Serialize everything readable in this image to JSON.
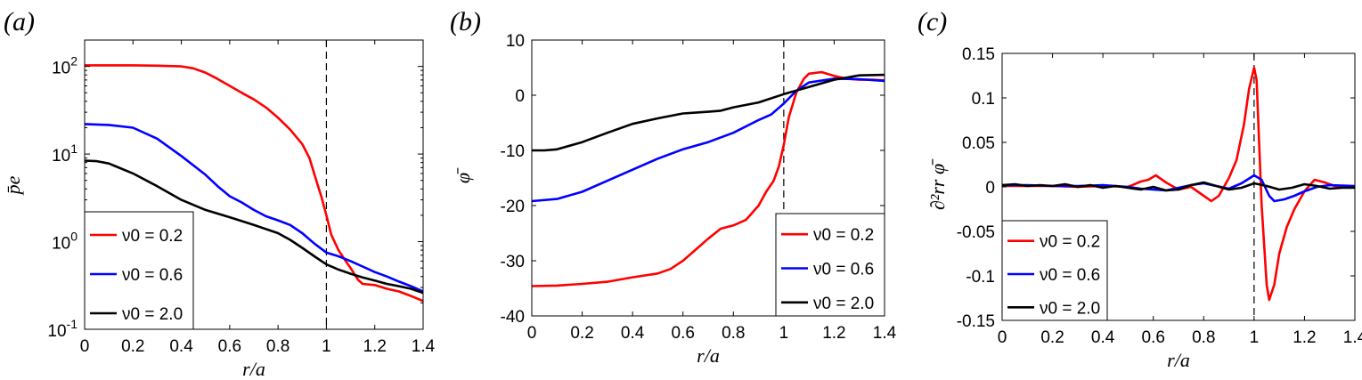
{
  "chart_data": [
    {
      "type": "line",
      "panel": "(a)",
      "xlabel": "r/a",
      "ylabel": "p̄e",
      "xlim": [
        0,
        1.4
      ],
      "ylim": [
        0.1,
        200
      ],
      "yscale": "log",
      "xticks": [
        "0",
        "0.2",
        "0.4",
        "0.6",
        "0.8",
        "1",
        "1.2",
        "1.4"
      ],
      "yticks": [
        {
          "v": 0.1,
          "base": "10",
          "exp": "-1"
        },
        {
          "v": 1,
          "base": "10",
          "exp": "0"
        },
        {
          "v": 10,
          "base": "10",
          "exp": "1"
        },
        {
          "v": 100,
          "base": "10",
          "exp": "2"
        }
      ],
      "vline": 1,
      "legend_position": "bottom-left",
      "series": [
        {
          "name": "ν0 = 0.2",
          "color": "#ff0000",
          "x": [
            0,
            0.1,
            0.2,
            0.3,
            0.4,
            0.45,
            0.5,
            0.55,
            0.6,
            0.65,
            0.7,
            0.75,
            0.8,
            0.85,
            0.9,
            0.93,
            0.96,
            0.98,
            1.0,
            1.02,
            1.05,
            1.08,
            1.1,
            1.13,
            1.15,
            1.2,
            1.25,
            1.3,
            1.35,
            1.4
          ],
          "y": [
            103,
            103,
            103,
            102,
            100,
            95,
            85,
            72,
            60,
            50,
            42,
            34,
            26,
            19,
            13,
            9,
            4.8,
            3.2,
            2.0,
            1.2,
            0.8,
            0.6,
            0.5,
            0.37,
            0.33,
            0.32,
            0.29,
            0.27,
            0.24,
            0.21
          ]
        },
        {
          "name": "ν0 = 0.6",
          "color": "#0000ff",
          "x": [
            0,
            0.1,
            0.2,
            0.3,
            0.4,
            0.5,
            0.55,
            0.6,
            0.65,
            0.7,
            0.75,
            0.8,
            0.85,
            0.9,
            0.95,
            1.0,
            1.05,
            1.1,
            1.15,
            1.2,
            1.25,
            1.3,
            1.35,
            1.4
          ],
          "y": [
            22,
            21.5,
            20,
            15,
            9.5,
            5.8,
            4.3,
            3.3,
            2.8,
            2.3,
            1.95,
            1.75,
            1.55,
            1.25,
            0.95,
            0.75,
            0.68,
            0.6,
            0.52,
            0.45,
            0.4,
            0.35,
            0.31,
            0.27
          ]
        },
        {
          "name": "ν0 = 2.0",
          "color": "#000000",
          "x": [
            0,
            0.05,
            0.1,
            0.2,
            0.3,
            0.4,
            0.5,
            0.6,
            0.7,
            0.8,
            0.85,
            0.9,
            0.95,
            1.0,
            1.05,
            1.1,
            1.15,
            1.2,
            1.25,
            1.3,
            1.35,
            1.4
          ],
          "y": [
            8.4,
            8.3,
            7.8,
            6.0,
            4.3,
            3.0,
            2.3,
            1.9,
            1.55,
            1.25,
            1.05,
            0.85,
            0.68,
            0.55,
            0.48,
            0.43,
            0.39,
            0.36,
            0.33,
            0.31,
            0.29,
            0.26
          ]
        }
      ]
    },
    {
      "type": "line",
      "panel": "(b)",
      "xlabel": "r/a",
      "ylabel": "φ̄",
      "xlim": [
        0,
        1.4
      ],
      "ylim": [
        -40,
        10
      ],
      "xticks": [
        "0",
        "0.2",
        "0.4",
        "0.6",
        "0.8",
        "1",
        "1.2",
        "1.4"
      ],
      "yticks": [
        "-40",
        "-30",
        "-20",
        "-10",
        "0",
        "10"
      ],
      "vline": 1,
      "legend_position": "bottom-right",
      "series": [
        {
          "name": "ν0 = 0.2",
          "color": "#ff0000",
          "x": [
            0,
            0.1,
            0.2,
            0.3,
            0.4,
            0.5,
            0.55,
            0.6,
            0.65,
            0.7,
            0.75,
            0.8,
            0.85,
            0.9,
            0.93,
            0.96,
            0.98,
            1.0,
            1.02,
            1.05,
            1.08,
            1.1,
            1.15,
            1.2,
            1.25,
            1.3,
            1.35,
            1.4
          ],
          "y": [
            -34.6,
            -34.5,
            -34.2,
            -33.8,
            -33.0,
            -32.3,
            -31.5,
            -30.0,
            -28.0,
            -26.0,
            -24.2,
            -23.6,
            -22.6,
            -20.0,
            -17.5,
            -15.5,
            -13.0,
            -9.0,
            -4.0,
            0.5,
            3.0,
            3.9,
            4.2,
            3.5,
            3.0,
            2.8,
            2.8,
            2.7
          ]
        },
        {
          "name": "ν0 = 0.6",
          "color": "#0000ff",
          "x": [
            0,
            0.1,
            0.2,
            0.3,
            0.4,
            0.5,
            0.6,
            0.7,
            0.8,
            0.9,
            0.95,
            1.0,
            1.05,
            1.1,
            1.2,
            1.3,
            1.4
          ],
          "y": [
            -19.2,
            -18.8,
            -17.5,
            -15.5,
            -13.5,
            -11.5,
            -9.8,
            -8.5,
            -6.8,
            -4.5,
            -3.5,
            -1.5,
            0.8,
            2.3,
            3.0,
            2.9,
            2.6
          ]
        },
        {
          "name": "ν0 = 2.0",
          "color": "#000000",
          "x": [
            0,
            0.05,
            0.1,
            0.2,
            0.3,
            0.4,
            0.5,
            0.6,
            0.7,
            0.75,
            0.8,
            0.9,
            1.0,
            1.1,
            1.2,
            1.3,
            1.4
          ],
          "y": [
            -10.0,
            -10.0,
            -9.8,
            -8.5,
            -6.8,
            -5.2,
            -4.2,
            -3.3,
            -3.0,
            -2.8,
            -2.2,
            -1.3,
            0.2,
            1.5,
            2.8,
            3.6,
            3.7
          ]
        }
      ]
    },
    {
      "type": "line",
      "panel": "(c)",
      "xlabel": "r/a",
      "ylabel": "∂²rr φ̄",
      "xlim": [
        0,
        1.4
      ],
      "ylim": [
        -0.15,
        0.15
      ],
      "xticks": [
        "0",
        "0.2",
        "0.4",
        "0.6",
        "0.8",
        "1",
        "1.2",
        "1.4"
      ],
      "yticks": [
        "-0.15",
        "-0.1",
        "-0.05",
        "0",
        "0.05",
        "0.1",
        "0.15"
      ],
      "vline": 1,
      "legend_position": "bottom-left",
      "series": [
        {
          "name": "ν0 = 0.2",
          "color": "#ff0000",
          "x": [
            0,
            0.1,
            0.2,
            0.3,
            0.4,
            0.5,
            0.55,
            0.58,
            0.61,
            0.65,
            0.7,
            0.75,
            0.8,
            0.83,
            0.86,
            0.9,
            0.93,
            0.96,
            0.98,
            1.0,
            1.01,
            1.02,
            1.03,
            1.05,
            1.06,
            1.08,
            1.1,
            1.13,
            1.16,
            1.2,
            1.24,
            1.28,
            1.32,
            1.4
          ],
          "y": [
            0.001,
            0.001,
            0.001,
            0.0,
            0.001,
            0.0,
            0.006,
            0.008,
            0.013,
            0.005,
            -0.003,
            0.0,
            -0.01,
            -0.016,
            -0.01,
            0.01,
            0.03,
            0.07,
            0.11,
            0.134,
            0.12,
            0.05,
            -0.02,
            -0.11,
            -0.127,
            -0.11,
            -0.075,
            -0.045,
            -0.025,
            -0.005,
            0.008,
            0.005,
            0.001,
            0.0
          ]
        },
        {
          "name": "ν0 = 0.6",
          "color": "#0000ff",
          "x": [
            0,
            0.1,
            0.2,
            0.3,
            0.4,
            0.5,
            0.55,
            0.6,
            0.65,
            0.7,
            0.75,
            0.8,
            0.85,
            0.9,
            0.95,
            1.0,
            1.03,
            1.06,
            1.08,
            1.12,
            1.16,
            1.2,
            1.25,
            1.3,
            1.4
          ],
          "y": [
            0.002,
            0.002,
            0.001,
            0.001,
            0.002,
            0.0,
            -0.002,
            -0.003,
            -0.004,
            -0.001,
            0.002,
            0.004,
            0.001,
            -0.002,
            0.004,
            0.013,
            0.008,
            -0.01,
            -0.016,
            -0.014,
            -0.01,
            -0.005,
            0.0,
            0.002,
            0.001
          ]
        },
        {
          "name": "ν0 = 2.0",
          "color": "#000000",
          "x": [
            0,
            0.05,
            0.1,
            0.15,
            0.2,
            0.25,
            0.3,
            0.35,
            0.4,
            0.45,
            0.5,
            0.55,
            0.6,
            0.65,
            0.7,
            0.75,
            0.8,
            0.85,
            0.9,
            0.95,
            1.0,
            1.05,
            1.1,
            1.15,
            1.2,
            1.25,
            1.3,
            1.35,
            1.4
          ],
          "y": [
            0.002,
            0.003,
            0.001,
            0.002,
            0.001,
            0.003,
            0.0,
            0.002,
            -0.001,
            0.001,
            -0.001,
            -0.003,
            0.0,
            -0.004,
            -0.003,
            0.002,
            0.005,
            0.001,
            -0.003,
            -0.001,
            0.004,
            0.001,
            -0.003,
            -0.001,
            0.003,
            0.001,
            -0.002,
            -0.001,
            -0.001
          ]
        }
      ]
    }
  ]
}
